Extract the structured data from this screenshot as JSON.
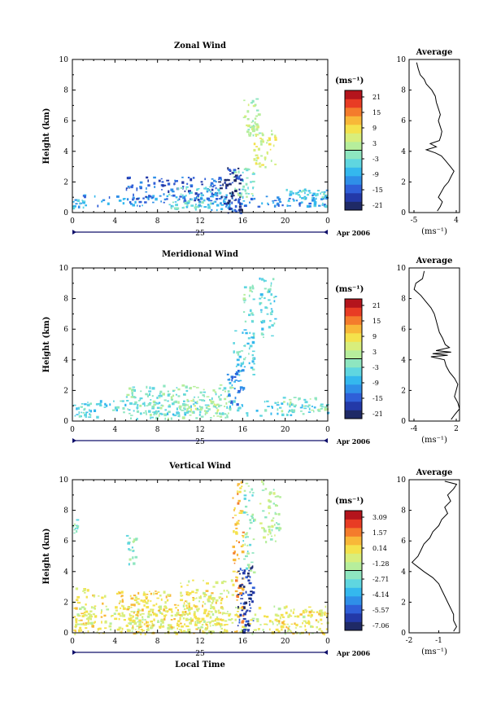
{
  "colors": {
    "scale": [
      "#1f2a66",
      "#2339a8",
      "#2f5fd8",
      "#2f8fe8",
      "#34b8ee",
      "#5fd6e0",
      "#8ee6c0",
      "#b6ee9c",
      "#d8ee7c",
      "#f4e24c",
      "#f8b838",
      "#f47c2c",
      "#e83c24",
      "#b4141c"
    ],
    "axis": "#000000",
    "time_axis": "#10106a"
  },
  "panels": [
    {
      "title": "Zonal Wind",
      "avg_title": "Average",
      "ylabel": "Height (km)",
      "unit": "(ms⁻¹)",
      "cb_labels": [
        "21",
        "15",
        "9",
        "3",
        "-3",
        "-9",
        "-15",
        "-21"
      ],
      "x_ticks": [
        "0",
        "4",
        "8",
        "12",
        "16",
        "20",
        "0"
      ],
      "day_label": "25",
      "month_label": "Apr 2006",
      "y_ticks": [
        "0",
        "2",
        "4",
        "6",
        "8",
        "10"
      ],
      "avg_xticks": [
        "-5",
        "4"
      ],
      "avg_xlabel": "(ms⁻¹)"
    },
    {
      "title": "Meridional Wind",
      "avg_title": "Average",
      "ylabel": "Height (km)",
      "unit": "(ms⁻¹)",
      "cb_labels": [
        "21",
        "15",
        "9",
        "3",
        "-3",
        "-9",
        "-15",
        "-21"
      ],
      "x_ticks": [
        "0",
        "4",
        "8",
        "12",
        "16",
        "20",
        "0"
      ],
      "day_label": "25",
      "month_label": "Apr 2006",
      "y_ticks": [
        "0",
        "2",
        "4",
        "6",
        "8",
        "10"
      ],
      "avg_xticks": [
        "-4",
        "2"
      ],
      "avg_xlabel": "(ms⁻¹)"
    },
    {
      "title": "Vertical Wind",
      "avg_title": "Average",
      "ylabel": "Height (km)",
      "unit": "(ms⁻¹)",
      "cb_labels": [
        "3.09",
        "1.57",
        "0.14",
        "-1.28",
        "-2.71",
        "-4.14",
        "-5.57",
        "-7.06"
      ],
      "x_ticks": [
        "0",
        "4",
        "8",
        "12",
        "16",
        "20",
        "0"
      ],
      "day_label": "25",
      "month_label": "Apr 2006",
      "y_ticks": [
        "0",
        "2",
        "4",
        "6",
        "8",
        "10"
      ],
      "avg_xticks": [
        "-2",
        "-1"
      ],
      "avg_xlabel": "(ms⁻¹)",
      "xlabel": "Local Time"
    }
  ],
  "chart_data": [
    {
      "type": "heatmap",
      "title": "Zonal Wind",
      "ylabel": "Height (km)",
      "xlabel": "",
      "xlim": [
        0,
        24
      ],
      "ylim": [
        0,
        10
      ],
      "clim": [
        -24,
        24
      ],
      "profile": {
        "title": "Average",
        "xlim": [
          -6,
          4
        ],
        "points": [
          [
            -4.5,
            9.8
          ],
          [
            -4.2,
            9.4
          ],
          [
            -3.8,
            9.0
          ],
          [
            -3.0,
            8.7
          ],
          [
            -2.6,
            8.4
          ],
          [
            -1.5,
            8.0
          ],
          [
            -0.8,
            7.6
          ],
          [
            -0.6,
            7.2
          ],
          [
            -0.2,
            6.8
          ],
          [
            0.2,
            6.4
          ],
          [
            -0.2,
            6.0
          ],
          [
            0.2,
            5.6
          ],
          [
            0.5,
            5.3
          ],
          [
            0.3,
            5.0
          ],
          [
            0.0,
            4.7
          ],
          [
            -1.8,
            4.5
          ],
          [
            -0.6,
            4.3
          ],
          [
            -2.6,
            4.1
          ],
          [
            -0.8,
            3.9
          ],
          [
            0.4,
            3.7
          ],
          [
            1.2,
            3.4
          ],
          [
            2.2,
            3.0
          ],
          [
            2.9,
            2.7
          ],
          [
            2.4,
            2.4
          ],
          [
            1.8,
            2.0
          ],
          [
            1.0,
            1.7
          ],
          [
            0.3,
            1.3
          ],
          [
            -0.2,
            1.0
          ],
          [
            0.6,
            0.7
          ],
          [
            0.2,
            0.4
          ],
          [
            -0.4,
            0.1
          ]
        ]
      },
      "blobs": [
        [
          0.0,
          24.0,
          0.4,
          1.2,
          3,
          0.55
        ],
        [
          5.0,
          14.0,
          0.8,
          2.4,
          2,
          0.7
        ],
        [
          9.0,
          13.0,
          0.3,
          1.8,
          5,
          0.85
        ],
        [
          13.0,
          15.0,
          0.2,
          1.6,
          4,
          0.6
        ],
        [
          15.0,
          17.0,
          1.0,
          3.0,
          6,
          0.8
        ],
        [
          16.0,
          17.5,
          5.0,
          7.5,
          7,
          0.9
        ],
        [
          17.0,
          19.0,
          3.0,
          5.5,
          8,
          0.7
        ],
        [
          14.5,
          15.8,
          0.0,
          3.0,
          1,
          0.95
        ],
        [
          13.5,
          15.0,
          0.6,
          2.2,
          0,
          0.6
        ],
        [
          20.0,
          24.0,
          0.4,
          1.6,
          4,
          0.6
        ],
        [
          0.0,
          1.0,
          0.3,
          0.9,
          4,
          0.9
        ],
        [
          21.0,
          24.0,
          0.9,
          1.5,
          5,
          0.6
        ]
      ]
    },
    {
      "type": "heatmap",
      "title": "Meridional Wind",
      "ylabel": "Height (km)",
      "xlabel": "",
      "xlim": [
        0,
        24
      ],
      "ylim": [
        0,
        10
      ],
      "clim": [
        -24,
        24
      ],
      "profile": {
        "title": "Average",
        "xlim": [
          -4,
          2
        ],
        "points": [
          [
            -2.2,
            9.8
          ],
          [
            -2.4,
            9.3
          ],
          [
            -3.2,
            9.0
          ],
          [
            -3.4,
            8.6
          ],
          [
            -2.6,
            8.2
          ],
          [
            -2.0,
            7.8
          ],
          [
            -1.4,
            7.4
          ],
          [
            -1.0,
            7.0
          ],
          [
            -0.8,
            6.6
          ],
          [
            -0.6,
            6.2
          ],
          [
            -0.4,
            5.8
          ],
          [
            0.0,
            5.4
          ],
          [
            0.3,
            5.0
          ],
          [
            0.8,
            4.8
          ],
          [
            -0.8,
            4.6
          ],
          [
            1.0,
            4.5
          ],
          [
            -1.2,
            4.4
          ],
          [
            0.6,
            4.3
          ],
          [
            -1.4,
            4.2
          ],
          [
            0.2,
            4.0
          ],
          [
            0.4,
            3.6
          ],
          [
            0.8,
            3.2
          ],
          [
            1.4,
            2.8
          ],
          [
            1.8,
            2.4
          ],
          [
            1.6,
            2.0
          ],
          [
            1.4,
            1.6
          ],
          [
            1.8,
            1.2
          ],
          [
            2.0,
            0.8
          ],
          [
            1.4,
            0.4
          ],
          [
            1.0,
            0.1
          ]
        ]
      },
      "blobs": [
        [
          0.0,
          24.0,
          0.4,
          1.4,
          5,
          0.5
        ],
        [
          5.0,
          15.0,
          0.2,
          2.4,
          6,
          0.75
        ],
        [
          10.0,
          14.0,
          0.5,
          1.5,
          7,
          0.7
        ],
        [
          14.5,
          16.0,
          1.0,
          3.5,
          3,
          0.8
        ],
        [
          15.0,
          17.0,
          3.0,
          6.0,
          5,
          0.7
        ],
        [
          17.5,
          19.0,
          5.5,
          9.8,
          5,
          0.6
        ],
        [
          16.0,
          17.0,
          6.5,
          9.0,
          6,
          0.6
        ],
        [
          19.0,
          24.0,
          0.6,
          1.6,
          6,
          0.5
        ],
        [
          0.0,
          3.0,
          0.3,
          1.2,
          5,
          0.7
        ]
      ]
    },
    {
      "type": "heatmap",
      "title": "Vertical Wind",
      "ylabel": "Height (km)",
      "xlabel": "Local Time",
      "xlim": [
        0,
        24
      ],
      "ylim": [
        0,
        10
      ],
      "clim": [
        -7.06,
        3.09
      ],
      "profile": {
        "title": "Average",
        "xlim": [
          -2,
          -0.3
        ],
        "points": [
          [
            -0.8,
            9.9
          ],
          [
            -0.4,
            9.7
          ],
          [
            -0.5,
            9.4
          ],
          [
            -0.7,
            9.0
          ],
          [
            -0.6,
            8.6
          ],
          [
            -0.8,
            8.2
          ],
          [
            -0.7,
            7.8
          ],
          [
            -0.9,
            7.4
          ],
          [
            -1.0,
            7.0
          ],
          [
            -1.2,
            6.6
          ],
          [
            -1.3,
            6.2
          ],
          [
            -1.5,
            5.8
          ],
          [
            -1.6,
            5.4
          ],
          [
            -1.7,
            5.0
          ],
          [
            -1.9,
            4.6
          ],
          [
            -1.7,
            4.3
          ],
          [
            -1.5,
            4.0
          ],
          [
            -1.2,
            3.6
          ],
          [
            -1.0,
            3.2
          ],
          [
            -0.9,
            2.8
          ],
          [
            -0.8,
            2.4
          ],
          [
            -0.7,
            2.0
          ],
          [
            -0.6,
            1.6
          ],
          [
            -0.5,
            1.2
          ],
          [
            -0.5,
            0.8
          ],
          [
            -0.4,
            0.4
          ],
          [
            -0.5,
            0.1
          ]
        ]
      },
      "blobs": [
        [
          0.0,
          24.0,
          0.0,
          1.8,
          8,
          0.6
        ],
        [
          4.0,
          14.0,
          0.0,
          2.8,
          9,
          0.8
        ],
        [
          10.0,
          15.0,
          0.0,
          3.5,
          8,
          0.6
        ],
        [
          15.0,
          16.0,
          0.0,
          10.0,
          10,
          0.7
        ],
        [
          15.5,
          17.0,
          0.0,
          4.5,
          1,
          0.9
        ],
        [
          16.0,
          17.0,
          4.0,
          9.8,
          6,
          0.6
        ],
        [
          17.5,
          19.5,
          6.0,
          10.0,
          7,
          0.6
        ],
        [
          0.0,
          3.0,
          0.0,
          3.0,
          9,
          0.6
        ],
        [
          19.0,
          24.0,
          0.0,
          1.5,
          9,
          0.6
        ],
        [
          5.0,
          6.0,
          4.5,
          6.5,
          6,
          0.6
        ],
        [
          0.0,
          0.5,
          6.5,
          7.5,
          6,
          0.6
        ]
      ]
    }
  ]
}
